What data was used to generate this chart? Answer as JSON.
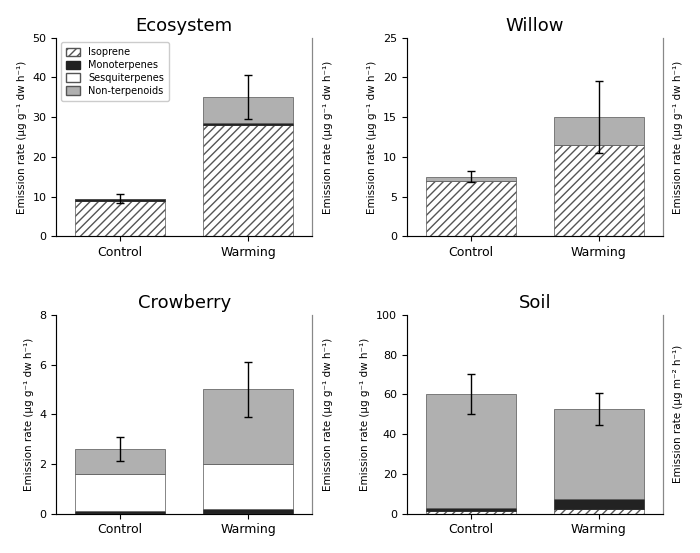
{
  "subplots": [
    {
      "title": "Ecosystem",
      "ylabel_left": "Emission rate (μg g⁻¹ dw h⁻¹)",
      "ylabel_right": "Emission rate (μg g⁻¹ dw h⁻¹)",
      "ylim": [
        0,
        50
      ],
      "yticks": [
        0,
        10,
        20,
        30,
        40,
        50
      ],
      "show_legend": true,
      "bars": {
        "Control": {
          "isoprene": 9.0,
          "monoterpenes": 0.3,
          "sesquiterpenes": 0.0,
          "nonterpenoids": 0.2,
          "error": 1.1
        },
        "Warming": {
          "isoprene": 28.0,
          "monoterpenes": 0.5,
          "sesquiterpenes": 0.0,
          "nonterpenoids": 6.5,
          "error": 5.5
        }
      }
    },
    {
      "title": "Willow",
      "ylabel_left": "Emission rate (μg g⁻¹ dw h⁻¹)",
      "ylabel_right": "Emission rate (μg g⁻¹ dw h⁻¹)",
      "ylim": [
        0,
        25
      ],
      "yticks": [
        0,
        5,
        10,
        15,
        20,
        25
      ],
      "show_legend": false,
      "bars": {
        "Control": {
          "isoprene": 7.0,
          "monoterpenes": 0.0,
          "sesquiterpenes": 0.0,
          "nonterpenoids": 0.5,
          "error": 0.7
        },
        "Warming": {
          "isoprene": 11.5,
          "monoterpenes": 0.0,
          "sesquiterpenes": 0.0,
          "nonterpenoids": 3.5,
          "error": 4.5
        }
      }
    },
    {
      "title": "Crowberry",
      "ylabel_left": "Emission rate (μg g⁻¹ dw h⁻¹)",
      "ylabel_right": "Emission rate (μg g⁻¹ dw h⁻¹)",
      "ylim": [
        0,
        8
      ],
      "yticks": [
        0,
        2,
        4,
        6,
        8
      ],
      "show_legend": false,
      "bars": {
        "Control": {
          "isoprene": 0.0,
          "monoterpenes": 0.1,
          "sesquiterpenes": 1.5,
          "nonterpenoids": 1.0,
          "error": 0.5
        },
        "Warming": {
          "isoprene": 0.0,
          "monoterpenes": 0.2,
          "sesquiterpenes": 1.8,
          "nonterpenoids": 3.0,
          "error": 1.1
        }
      }
    },
    {
      "title": "Soil",
      "ylabel_left": "Emission rate (μg g⁻¹ dw h⁻¹)",
      "ylabel_right": "Emission rate (μg m⁻² h⁻¹)",
      "ylim": [
        0,
        100
      ],
      "yticks": [
        0,
        20,
        40,
        60,
        80,
        100
      ],
      "show_legend": false,
      "bars": {
        "Control": {
          "isoprene": 1.5,
          "monoterpenes": 1.5,
          "sesquiterpenes": 0.0,
          "nonterpenoids": 57.0,
          "error": 10.0
        },
        "Warming": {
          "isoprene": 2.5,
          "monoterpenes": 5.0,
          "sesquiterpenes": 0.0,
          "nonterpenoids": 45.0,
          "error": 8.0
        }
      }
    }
  ],
  "colors": {
    "isoprene_hatch": "////",
    "isoprene_facecolor": "white",
    "isoprene_edgecolor": "#555555",
    "monoterpenes_facecolor": "#222222",
    "monoterpenes_edgecolor": "#222222",
    "sesquiterpenes_facecolor": "white",
    "sesquiterpenes_edgecolor": "#555555",
    "nonterpenoids_facecolor": "#b0b0b0",
    "nonterpenoids_edgecolor": "#555555"
  },
  "bar_width": 0.35,
  "bar_positions": [
    0.25,
    0.75
  ],
  "xlim": [
    0.0,
    1.0
  ],
  "xtick_labels": [
    "Control",
    "Warming"
  ],
  "xtick_positions": [
    0.25,
    0.75
  ]
}
